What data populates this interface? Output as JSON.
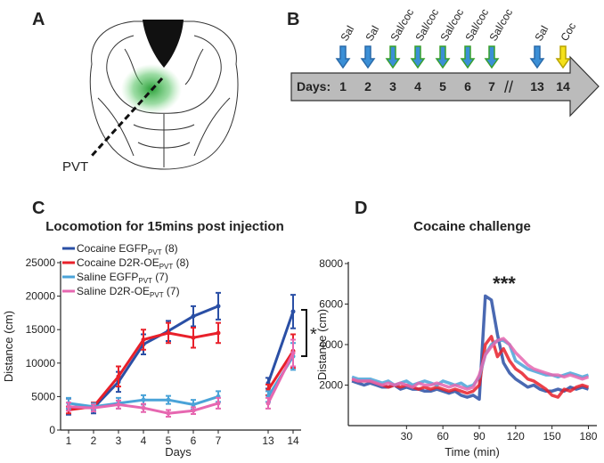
{
  "panel_a": {
    "letter": "A",
    "label": "PVT"
  },
  "panel_b": {
    "letter": "B",
    "days_label": "Days:",
    "break_mark": "//",
    "days": [
      "1",
      "2",
      "3",
      "4",
      "5",
      "6",
      "7",
      "13",
      "14"
    ],
    "injections": [
      "Sal",
      "Sal",
      "Sal/coc",
      "Sal/coc",
      "Sal/coc",
      "Sal/coc",
      "Sal/coc",
      "Sal",
      "Coc"
    ],
    "arrow_colors": [
      "#3b8fd6",
      "#3b8fd6",
      "#3b8fd6",
      "#3b8fd6",
      "#3b8fd6",
      "#3b8fd6",
      "#3b8fd6",
      "#3b8fd6",
      "#f5e11a"
    ],
    "arrow_outlines": [
      "#2a6aa8",
      "#2a6aa8",
      "#38a02c",
      "#38a02c",
      "#38a02c",
      "#38a02c",
      "#38a02c",
      "#2a6aa8",
      "#b8a400"
    ]
  },
  "chart_data": [
    {
      "type": "line",
      "letter": "C",
      "title": "Locomotion for 15mins post injection",
      "x_label": "Days",
      "y_label": "Distance (cm)",
      "categories": [
        "1",
        "2",
        "3",
        "4",
        "5",
        "6",
        "7",
        null,
        "13",
        "14"
      ],
      "ylim": [
        0,
        25000
      ],
      "yticks": [
        0,
        5000,
        10000,
        15000,
        20000,
        25000
      ],
      "grid": false,
      "annotation": "*",
      "series": [
        {
          "name": "Cocaine EGFP",
          "name_sub": "PVT",
          "name_suffix": " (8)",
          "color": "#2a4fa5",
          "values": [
            3500,
            3300,
            7200,
            12800,
            14800,
            17000,
            18500,
            null,
            7000,
            17700
          ],
          "errors": [
            1200,
            800,
            1500,
            1500,
            1500,
            1500,
            2000,
            null,
            800,
            2500
          ]
        },
        {
          "name": "Cocaine D2R-OE",
          "name_sub": "PVT",
          "name_suffix": " (8)",
          "color": "#e8202a",
          "values": [
            3000,
            3500,
            8000,
            13500,
            14500,
            13800,
            14500,
            null,
            6000,
            11800
          ],
          "errors": [
            500,
            600,
            1500,
            1500,
            1500,
            1500,
            1500,
            null,
            800,
            2500
          ]
        },
        {
          "name": "Saline EGFP",
          "name_sub": "PVT",
          "name_suffix": " (7)",
          "color": "#4aa3d8",
          "values": [
            4000,
            3500,
            4000,
            4500,
            4500,
            3800,
            5000,
            null,
            5000,
            11000
          ],
          "errors": [
            800,
            500,
            800,
            700,
            600,
            700,
            800,
            null,
            800,
            2000
          ]
        },
        {
          "name": "Saline D2R-OE",
          "name_sub": "PVT",
          "name_suffix": " (7)",
          "color": "#e667b0",
          "values": [
            3500,
            3300,
            3800,
            3300,
            2500,
            2900,
            4000,
            null,
            4000,
            11500
          ],
          "errors": [
            600,
            500,
            600,
            600,
            500,
            500,
            800,
            null,
            800,
            2000
          ]
        }
      ]
    },
    {
      "type": "line",
      "letter": "D",
      "title": "Cocaine challenge",
      "x_label": "Time (min)",
      "y_label": "Distance (cm)",
      "x": [
        -15,
        -10,
        -5,
        0,
        5,
        10,
        15,
        20,
        25,
        30,
        35,
        40,
        45,
        50,
        55,
        60,
        65,
        70,
        75,
        80,
        85,
        90,
        95,
        100,
        105,
        110,
        115,
        120,
        125,
        130,
        135,
        140,
        145,
        150,
        155,
        160,
        165,
        170,
        175,
        180
      ],
      "xlim": [
        -18,
        187
      ],
      "xticks": [
        30,
        60,
        90,
        120,
        150,
        180
      ],
      "ylim": [
        0,
        8000
      ],
      "yticks": [
        2000,
        4000,
        6000,
        8000
      ],
      "grid": false,
      "annotation": "***",
      "series": [
        {
          "color": "#2a4fa5",
          "values": [
            2200,
            2100,
            2000,
            2100,
            2000,
            1900,
            1900,
            2000,
            1800,
            1900,
            1800,
            1800,
            1700,
            1700,
            1800,
            1700,
            1600,
            1700,
            1500,
            1400,
            1500,
            1300,
            6400,
            6200,
            4500,
            3100,
            2600,
            2300,
            2100,
            1900,
            2000,
            1800,
            1700,
            1700,
            1800,
            1700,
            1900,
            1800,
            1900,
            1800
          ]
        },
        {
          "color": "#e8202a",
          "values": [
            2300,
            2200,
            2200,
            2200,
            2100,
            2000,
            1900,
            2000,
            1900,
            2000,
            1900,
            1800,
            1900,
            1800,
            1900,
            1800,
            1700,
            1800,
            1700,
            1600,
            1700,
            2000,
            4000,
            4400,
            3400,
            3800,
            3200,
            2800,
            2600,
            2300,
            2200,
            2000,
            1800,
            1500,
            1400,
            1800,
            1700,
            1900,
            2000,
            1900
          ]
        },
        {
          "color": "#4aa3d8",
          "values": [
            2400,
            2300,
            2300,
            2300,
            2200,
            2100,
            2200,
            2000,
            2100,
            2200,
            2000,
            2100,
            2200,
            2100,
            2000,
            2200,
            2100,
            2000,
            2100,
            1900,
            2000,
            2400,
            3500,
            4000,
            4200,
            4200,
            4000,
            3200,
            3000,
            2800,
            2700,
            2600,
            2500,
            2500,
            2400,
            2500,
            2600,
            2500,
            2400,
            2500
          ]
        },
        {
          "color": "#e667b0",
          "values": [
            2300,
            2200,
            2200,
            2200,
            2100,
            2000,
            2100,
            2000,
            2100,
            2000,
            1900,
            2100,
            2000,
            2000,
            2100,
            2000,
            1900,
            2000,
            1900,
            1800,
            1900,
            2500,
            3500,
            3900,
            4200,
            4300,
            4000,
            3600,
            3300,
            3000,
            2800,
            2700,
            2600,
            2500,
            2500,
            2400,
            2500,
            2400,
            2300,
            2400
          ]
        }
      ]
    }
  ]
}
